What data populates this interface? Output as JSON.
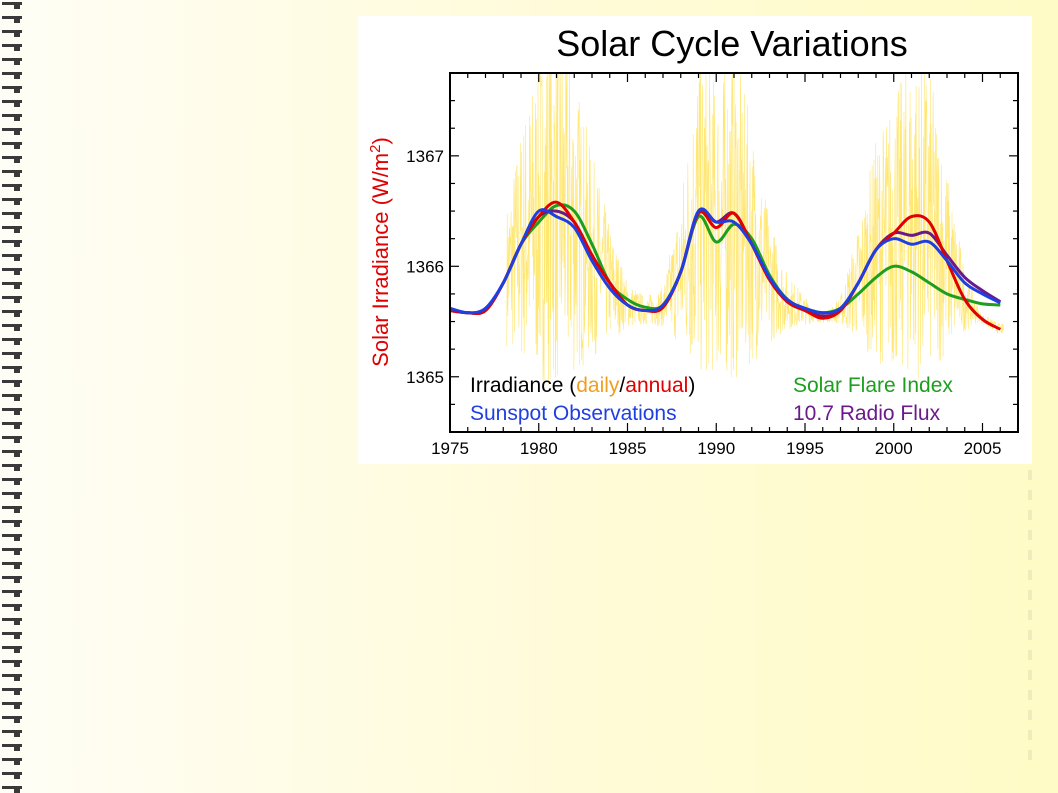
{
  "chart_data": {
    "type": "line",
    "title": "Solar Cycle Variations",
    "ylabel_parts": [
      "Solar Irradiance (W/m",
      "2",
      ")"
    ],
    "xlim": [
      1975,
      2007
    ],
    "ylim": [
      1364.5,
      1367.75
    ],
    "x_ticks": [
      "1975",
      "1980",
      "1985",
      "1990",
      "1995",
      "2000",
      "2005"
    ],
    "y_ticks": [
      "1365",
      "1366",
      "1367"
    ],
    "grid": false,
    "legend": {
      "irradiance_prefix": "Irradiance (",
      "daily": "daily",
      "slash": "/",
      "annual": "annual",
      "suffix": ")",
      "solar_flare": "Solar Flare Index",
      "sunspot": "Sunspot Observations",
      "radio_flux": "10.7 Radio Flux"
    },
    "colors": {
      "daily": "#ffd400",
      "annual": "#e00000",
      "solar_flare": "#1e9e1e",
      "sunspot": "#1f3fe0",
      "radio_flux": "#6a1a8a",
      "ylabel": "#e00000",
      "legend_daily_text": "#f0a020"
    },
    "series": [
      {
        "name": "annual",
        "x": [
          1975,
          1976,
          1977,
          1978,
          1979,
          1980,
          1981,
          1982,
          1983,
          1984,
          1985,
          1986,
          1987,
          1988,
          1989,
          1990,
          1991,
          1992,
          1993,
          1994,
          1995,
          1996,
          1997,
          1998,
          1999,
          2000,
          2001,
          2002,
          2003,
          2004,
          2005,
          2006
        ],
        "y": [
          1365.6,
          1365.58,
          1365.6,
          1365.85,
          1366.2,
          1366.45,
          1366.58,
          1366.4,
          1366.1,
          1365.85,
          1365.65,
          1365.6,
          1365.63,
          1365.95,
          1366.48,
          1366.35,
          1366.48,
          1366.2,
          1365.88,
          1365.68,
          1365.6,
          1365.53,
          1365.6,
          1365.85,
          1366.15,
          1366.3,
          1366.45,
          1366.4,
          1366.05,
          1365.7,
          1365.52,
          1365.43
        ]
      },
      {
        "name": "Solar Flare Index",
        "x": [
          1975,
          1976,
          1977,
          1978,
          1979,
          1980,
          1981,
          1982,
          1983,
          1984,
          1985,
          1986,
          1987,
          1988,
          1989,
          1990,
          1991,
          1992,
          1993,
          1994,
          1995,
          1996,
          1997,
          1998,
          1999,
          2000,
          2001,
          2002,
          2003,
          2004,
          2005,
          2006
        ],
        "y": [
          1365.6,
          1365.58,
          1365.6,
          1365.85,
          1366.2,
          1366.4,
          1366.55,
          1366.5,
          1366.2,
          1365.85,
          1365.7,
          1365.63,
          1365.65,
          1365.95,
          1366.45,
          1366.22,
          1366.38,
          1366.25,
          1365.92,
          1365.7,
          1365.62,
          1365.58,
          1365.62,
          1365.75,
          1365.9,
          1366.0,
          1365.95,
          1365.85,
          1365.75,
          1365.7,
          1365.66,
          1365.65
        ]
      },
      {
        "name": "Sunspot Observations",
        "x": [
          1975,
          1976,
          1977,
          1978,
          1979,
          1980,
          1981,
          1982,
          1983,
          1984,
          1985,
          1986,
          1987,
          1988,
          1989,
          1990,
          1991,
          1992,
          1993,
          1994,
          1995,
          1996,
          1997,
          1998,
          1999,
          2000,
          2001,
          2002,
          2003,
          2004,
          2005,
          2006
        ],
        "y": [
          1365.62,
          1365.58,
          1365.62,
          1365.85,
          1366.2,
          1366.5,
          1366.45,
          1366.35,
          1366.05,
          1365.8,
          1365.65,
          1365.6,
          1365.65,
          1365.95,
          1366.5,
          1366.4,
          1366.4,
          1366.2,
          1365.9,
          1365.7,
          1365.62,
          1365.58,
          1365.62,
          1365.85,
          1366.15,
          1366.25,
          1366.2,
          1366.22,
          1366.05,
          1365.85,
          1365.75,
          1365.67
        ]
      },
      {
        "name": "10.7 Radio Flux",
        "x": [
          1975,
          1976,
          1977,
          1978,
          1979,
          1980,
          1981,
          1982,
          1983,
          1984,
          1985,
          1986,
          1987,
          1988,
          1989,
          1990,
          1991,
          1992,
          1993,
          1994,
          1995,
          1996,
          1997,
          1998,
          1999,
          2000,
          2001,
          2002,
          2003,
          2004,
          2005,
          2006
        ],
        "y": [
          1365.6,
          1365.58,
          1365.6,
          1365.85,
          1366.2,
          1366.45,
          1366.5,
          1366.4,
          1366.1,
          1365.85,
          1365.65,
          1365.6,
          1365.63,
          1365.95,
          1366.5,
          1366.4,
          1366.48,
          1366.2,
          1365.88,
          1365.68,
          1365.6,
          1365.55,
          1365.6,
          1365.85,
          1366.15,
          1366.3,
          1366.28,
          1366.3,
          1366.1,
          1365.9,
          1365.78,
          1365.68
        ]
      }
    ]
  }
}
